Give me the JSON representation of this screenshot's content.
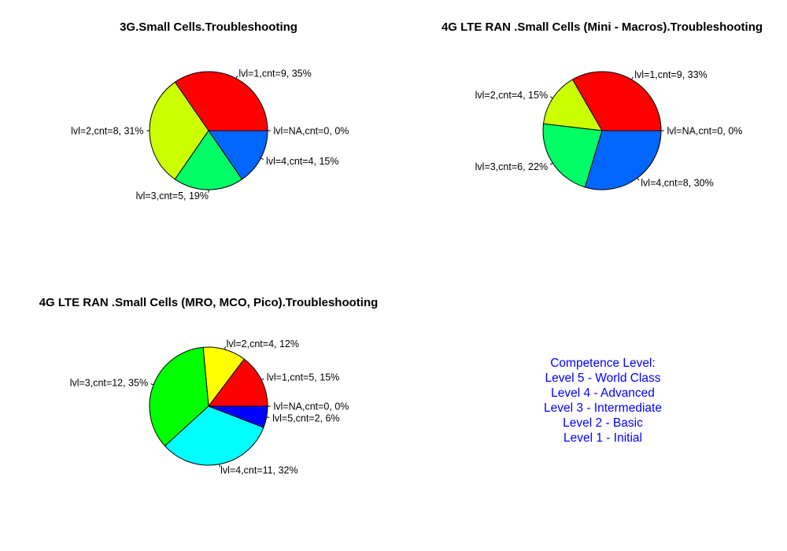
{
  "chart_data": [
    {
      "type": "pie",
      "title": "3G.Small Cells.Troubleshooting",
      "slices": [
        {
          "label": "lvl=NA,cnt=0, 0%",
          "value": 0,
          "color": "#0066ff"
        },
        {
          "label": "lvl=1,cnt=9, 35%",
          "value": 9,
          "color": "#ff0000"
        },
        {
          "label": "lvl=2,cnt=8, 31%",
          "value": 8,
          "color": "#ccff00"
        },
        {
          "label": "lvl=3,cnt=5, 19%",
          "value": 5,
          "color": "#00ff66"
        },
        {
          "label": "lvl=4,cnt=4, 15%",
          "value": 4,
          "color": "#0066ff"
        }
      ]
    },
    {
      "type": "pie",
      "title": "4G LTE RAN .Small Cells (Mini - Macros).Troubleshooting",
      "slices": [
        {
          "label": "lvl=NA,cnt=0, 0%",
          "value": 0,
          "color": "#0066ff"
        },
        {
          "label": "lvl=1,cnt=9, 33%",
          "value": 9,
          "color": "#ff0000"
        },
        {
          "label": "lvl=2,cnt=4, 15%",
          "value": 4,
          "color": "#ccff00"
        },
        {
          "label": "lvl=3,cnt=6, 22%",
          "value": 6,
          "color": "#00ff66"
        },
        {
          "label": "lvl=4,cnt=8, 30%",
          "value": 8,
          "color": "#0066ff"
        }
      ]
    },
    {
      "type": "pie",
      "title": "4G LTE RAN .Small Cells (MRO, MCO, Pico).Troubleshooting",
      "slices": [
        {
          "label": "lvl=NA,cnt=0, 0%",
          "value": 0,
          "color": "#0000ff"
        },
        {
          "label": "lvl=1,cnt=5, 15%",
          "value": 5,
          "color": "#ff0000"
        },
        {
          "label": "lvl=2,cnt=4, 12%",
          "value": 4,
          "color": "#ffff00"
        },
        {
          "label": "lvl=3,cnt=12, 35%",
          "value": 12,
          "color": "#00ff00"
        },
        {
          "label": "lvl=4,cnt=11, 32%",
          "value": 11,
          "color": "#00ffff"
        },
        {
          "label": "lvl=5,cnt=2, 6%",
          "value": 2,
          "color": "#0000ff"
        }
      ]
    }
  ],
  "legend": {
    "color": "#0000ff",
    "lines": [
      "Competence Level:",
      "Level 5 - World Class",
      "Level 4 - Advanced",
      "Level 3 - Intermediate",
      "Level 2 - Basic",
      "Level 1 - Initial"
    ]
  }
}
